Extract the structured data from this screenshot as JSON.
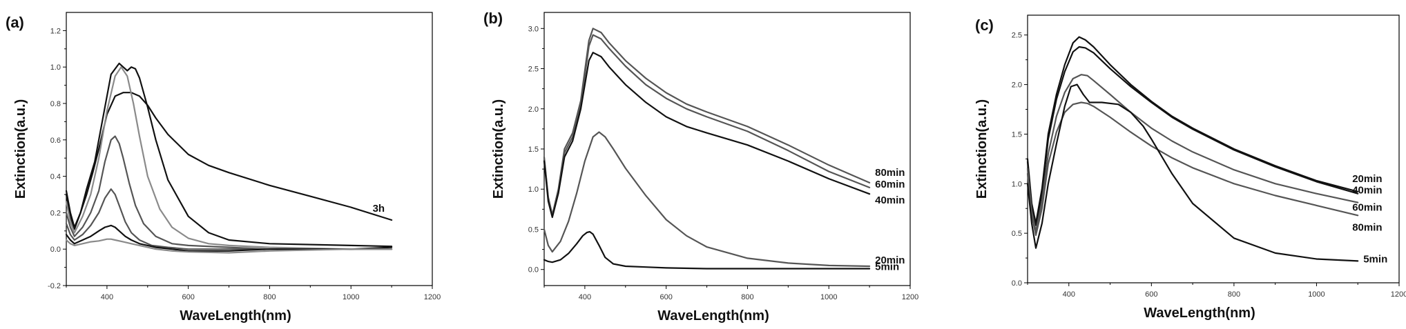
{
  "colors": {
    "dark": "#111111",
    "mid": "#555555",
    "light": "#8a8a8a"
  },
  "chart_data": [
    {
      "type": "line",
      "panel_label": "(a)",
      "xlabel": "WaveLength(nm)",
      "ylabel": "Extinction(a.u.)",
      "xlim": [
        300,
        1200
      ],
      "ylim": [
        -0.2,
        1.3
      ],
      "xticks": [
        400,
        600,
        800,
        1000,
        1200
      ],
      "yticks": [
        -0.2,
        0.0,
        0.2,
        0.4,
        0.6,
        0.8,
        1.0,
        1.2
      ],
      "series": [
        {
          "name": "3h",
          "color": "dark",
          "x": [
            300,
            310,
            320,
            335,
            350,
            365,
            380,
            400,
            420,
            440,
            460,
            480,
            500,
            520,
            550,
            600,
            650,
            700,
            800,
            900,
            1000,
            1100
          ],
          "y": [
            0.32,
            0.2,
            0.12,
            0.2,
            0.3,
            0.42,
            0.55,
            0.74,
            0.84,
            0.86,
            0.86,
            0.84,
            0.79,
            0.72,
            0.63,
            0.52,
            0.46,
            0.42,
            0.35,
            0.29,
            0.23,
            0.16
          ]
        },
        {
          "name": "",
          "color": "dark",
          "x": [
            300,
            310,
            320,
            335,
            350,
            370,
            390,
            410,
            430,
            440,
            450,
            460,
            470,
            480,
            500,
            520,
            550,
            600,
            650,
            700,
            800,
            1000,
            1100
          ],
          "y": [
            0.3,
            0.18,
            0.11,
            0.2,
            0.33,
            0.48,
            0.72,
            0.96,
            1.02,
            1.0,
            0.98,
            1.0,
            0.99,
            0.94,
            0.78,
            0.6,
            0.38,
            0.18,
            0.09,
            0.05,
            0.03,
            0.02,
            0.015
          ]
        },
        {
          "name": "",
          "color": "light",
          "x": [
            300,
            310,
            320,
            340,
            360,
            380,
            400,
            420,
            435,
            450,
            465,
            480,
            500,
            530,
            560,
            600,
            650,
            700,
            800,
            1000,
            1100
          ],
          "y": [
            0.26,
            0.15,
            0.09,
            0.18,
            0.3,
            0.5,
            0.76,
            0.95,
            1.0,
            0.95,
            0.8,
            0.62,
            0.4,
            0.22,
            0.12,
            0.06,
            0.03,
            0.02,
            0.01,
            0.0,
            0.0
          ]
        },
        {
          "name": "",
          "color": "mid",
          "x": [
            300,
            310,
            320,
            340,
            360,
            380,
            395,
            410,
            420,
            430,
            440,
            455,
            470,
            490,
            520,
            560,
            600,
            700,
            800,
            1000,
            1100
          ],
          "y": [
            0.2,
            0.12,
            0.07,
            0.12,
            0.2,
            0.32,
            0.48,
            0.6,
            0.62,
            0.58,
            0.5,
            0.36,
            0.24,
            0.14,
            0.07,
            0.03,
            0.02,
            0.01,
            0.0,
            0.0,
            0.0
          ]
        },
        {
          "name": "",
          "color": "mid",
          "x": [
            300,
            310,
            320,
            340,
            360,
            380,
            395,
            410,
            420,
            430,
            445,
            460,
            480,
            510,
            550,
            600,
            700,
            800,
            1000,
            1100
          ],
          "y": [
            0.14,
            0.08,
            0.05,
            0.08,
            0.13,
            0.2,
            0.28,
            0.33,
            0.3,
            0.24,
            0.15,
            0.09,
            0.05,
            0.02,
            0.01,
            0.0,
            0.0,
            0.0,
            0.0,
            0.0
          ]
        },
        {
          "name": "",
          "color": "dark",
          "x": [
            300,
            310,
            320,
            340,
            360,
            380,
            395,
            410,
            420,
            430,
            445,
            460,
            480,
            520,
            560,
            600,
            700,
            800,
            1000,
            1100
          ],
          "y": [
            0.08,
            0.05,
            0.03,
            0.05,
            0.07,
            0.1,
            0.12,
            0.13,
            0.12,
            0.1,
            0.07,
            0.05,
            0.03,
            0.01,
            0.0,
            -0.01,
            -0.01,
            0.0,
            0.0,
            0.01
          ]
        },
        {
          "name": "",
          "color": "light",
          "x": [
            300,
            310,
            320,
            340,
            360,
            380,
            400,
            410,
            420,
            440,
            460,
            480,
            520,
            560,
            600,
            700,
            800,
            1000,
            1100
          ],
          "y": [
            0.05,
            0.03,
            0.02,
            0.03,
            0.04,
            0.045,
            0.055,
            0.055,
            0.05,
            0.04,
            0.03,
            0.02,
            0.0,
            -0.01,
            -0.015,
            -0.02,
            -0.01,
            0.0,
            0.0
          ]
        }
      ]
    },
    {
      "type": "line",
      "panel_label": "(b)",
      "xlabel": "WaveLength(nm)",
      "ylabel": "Extinction(a.u.)",
      "xlim": [
        300,
        1200
      ],
      "ylim": [
        -0.2,
        3.2
      ],
      "xticks": [
        400,
        600,
        800,
        1000,
        1200
      ],
      "yticks": [
        0.0,
        0.5,
        1.0,
        1.5,
        2.0,
        2.5,
        3.0
      ],
      "series": [
        {
          "name": "80min",
          "color": "mid",
          "x": [
            300,
            310,
            320,
            335,
            350,
            370,
            390,
            410,
            420,
            440,
            460,
            500,
            550,
            600,
            650,
            700,
            800,
            900,
            1000,
            1100
          ],
          "y": [
            1.4,
            0.9,
            0.68,
            1.0,
            1.5,
            1.7,
            2.1,
            2.85,
            3.0,
            2.95,
            2.82,
            2.6,
            2.38,
            2.2,
            2.06,
            1.96,
            1.78,
            1.55,
            1.3,
            1.08
          ]
        },
        {
          "name": "60min",
          "color": "mid",
          "x": [
            300,
            310,
            320,
            335,
            350,
            370,
            390,
            410,
            420,
            440,
            460,
            500,
            550,
            600,
            650,
            700,
            800,
            900,
            1000,
            1100
          ],
          "y": [
            1.38,
            0.88,
            0.67,
            0.98,
            1.45,
            1.65,
            2.05,
            2.78,
            2.92,
            2.87,
            2.75,
            2.53,
            2.3,
            2.13,
            2.0,
            1.9,
            1.72,
            1.48,
            1.22,
            1.02
          ]
        },
        {
          "name": "40min",
          "color": "dark",
          "x": [
            300,
            310,
            320,
            335,
            350,
            370,
            390,
            410,
            420,
            440,
            460,
            500,
            550,
            600,
            650,
            700,
            800,
            900,
            1000,
            1100
          ],
          "y": [
            1.35,
            0.85,
            0.65,
            0.95,
            1.4,
            1.6,
            2.0,
            2.6,
            2.7,
            2.65,
            2.52,
            2.3,
            2.08,
            1.9,
            1.78,
            1.7,
            1.55,
            1.35,
            1.13,
            0.94
          ]
        },
        {
          "name": "20min",
          "color": "mid",
          "x": [
            300,
            310,
            320,
            340,
            360,
            380,
            400,
            420,
            435,
            450,
            470,
            500,
            550,
            600,
            650,
            700,
            800,
            900,
            1000,
            1100
          ],
          "y": [
            0.5,
            0.3,
            0.22,
            0.35,
            0.6,
            0.95,
            1.35,
            1.65,
            1.71,
            1.65,
            1.5,
            1.26,
            0.92,
            0.62,
            0.42,
            0.28,
            0.14,
            0.08,
            0.05,
            0.04
          ]
        },
        {
          "name": "5min",
          "color": "dark",
          "x": [
            300,
            310,
            320,
            340,
            360,
            380,
            395,
            405,
            412,
            420,
            435,
            450,
            470,
            500,
            550,
            600,
            700,
            800,
            1000,
            1100
          ],
          "y": [
            0.12,
            0.1,
            0.09,
            0.12,
            0.2,
            0.32,
            0.42,
            0.46,
            0.47,
            0.44,
            0.3,
            0.15,
            0.07,
            0.04,
            0.03,
            0.02,
            0.01,
            0.01,
            0.01,
            0.01
          ]
        }
      ]
    },
    {
      "type": "line",
      "panel_label": "(c)",
      "xlabel": "WaveLength(nm)",
      "ylabel": "Extinction(a.u.)",
      "xlim": [
        300,
        1200
      ],
      "ylim": [
        0.0,
        2.7
      ],
      "xticks": [
        400,
        600,
        800,
        1000,
        1200
      ],
      "yticks": [
        0.0,
        0.5,
        1.0,
        1.5,
        2.0,
        2.5
      ],
      "series": [
        {
          "name": "20min",
          "color": "dark",
          "x": [
            300,
            310,
            320,
            335,
            350,
            370,
            390,
            410,
            425,
            440,
            460,
            500,
            550,
            600,
            650,
            700,
            800,
            900,
            1000,
            1100
          ],
          "y": [
            1.25,
            0.8,
            0.6,
            0.95,
            1.5,
            1.9,
            2.2,
            2.42,
            2.48,
            2.45,
            2.38,
            2.2,
            2.0,
            1.83,
            1.68,
            1.56,
            1.35,
            1.18,
            1.03,
            0.92
          ]
        },
        {
          "name": "40min",
          "color": "dark",
          "x": [
            300,
            310,
            320,
            335,
            350,
            370,
            390,
            410,
            425,
            440,
            460,
            500,
            550,
            600,
            650,
            700,
            800,
            900,
            1000,
            1100
          ],
          "y": [
            1.22,
            0.78,
            0.58,
            0.9,
            1.45,
            1.85,
            2.13,
            2.33,
            2.38,
            2.37,
            2.32,
            2.16,
            1.98,
            1.82,
            1.67,
            1.55,
            1.34,
            1.17,
            1.02,
            0.9
          ]
        },
        {
          "name": "60min",
          "color": "mid",
          "x": [
            300,
            310,
            320,
            335,
            350,
            370,
            390,
            410,
            430,
            445,
            460,
            500,
            550,
            600,
            650,
            700,
            800,
            900,
            1000,
            1100
          ],
          "y": [
            1.15,
            0.72,
            0.52,
            0.82,
            1.3,
            1.68,
            1.92,
            2.06,
            2.1,
            2.09,
            2.04,
            1.9,
            1.72,
            1.56,
            1.43,
            1.32,
            1.14,
            1.0,
            0.9,
            0.81
          ]
        },
        {
          "name": "80min",
          "color": "mid",
          "x": [
            300,
            310,
            320,
            335,
            350,
            370,
            390,
            410,
            430,
            445,
            460,
            500,
            550,
            600,
            650,
            700,
            800,
            900,
            1000,
            1100
          ],
          "y": [
            1.1,
            0.68,
            0.48,
            0.75,
            1.2,
            1.52,
            1.72,
            1.8,
            1.82,
            1.81,
            1.78,
            1.67,
            1.52,
            1.38,
            1.26,
            1.16,
            1.0,
            0.88,
            0.78,
            0.68
          ]
        },
        {
          "name": "5min",
          "color": "dark",
          "x": [
            300,
            310,
            320,
            335,
            350,
            370,
            390,
            405,
            420,
            435,
            450,
            480,
            520,
            550,
            580,
            600,
            650,
            700,
            800,
            900,
            1000,
            1100
          ],
          "y": [
            1.0,
            0.6,
            0.35,
            0.6,
            1.0,
            1.4,
            1.78,
            1.98,
            2.0,
            1.9,
            1.82,
            1.82,
            1.8,
            1.72,
            1.58,
            1.45,
            1.1,
            0.8,
            0.45,
            0.3,
            0.24,
            0.22
          ]
        }
      ]
    }
  ]
}
